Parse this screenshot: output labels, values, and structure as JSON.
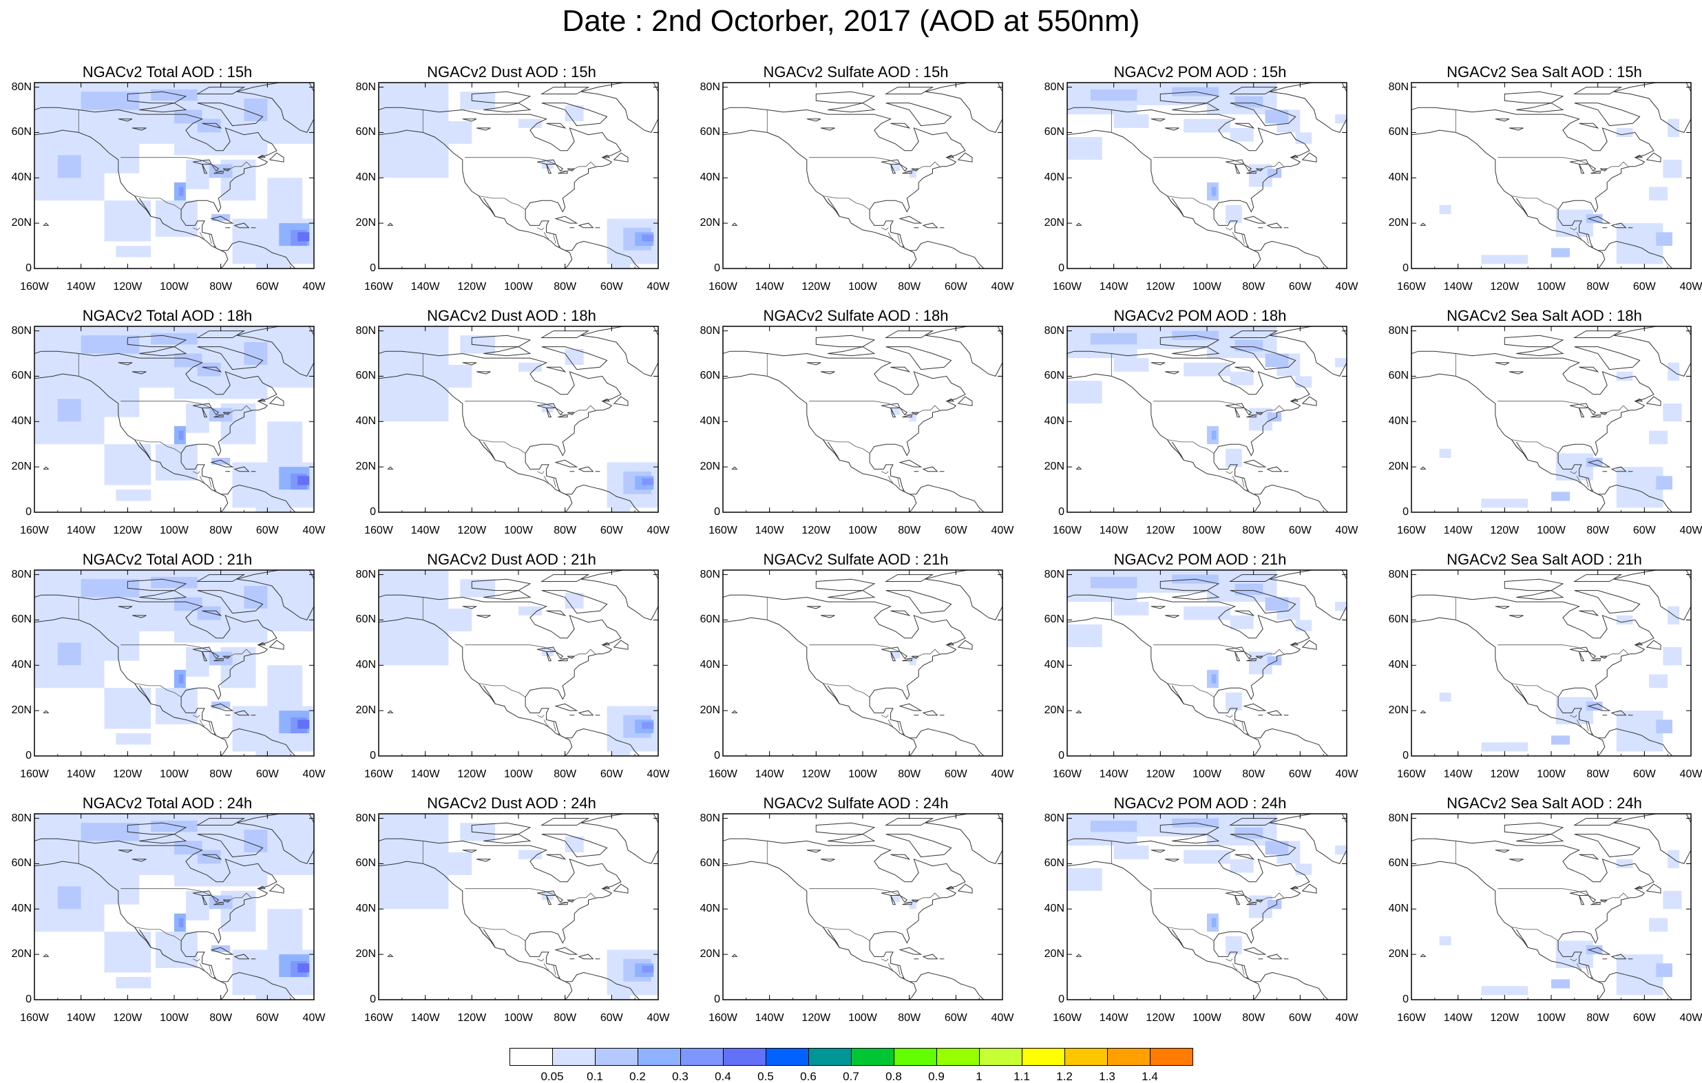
{
  "title": "Date : 2nd Octorber, 2017 (AOD at 550nm)",
  "map": {
    "x_ticks": [
      "160W",
      "140W",
      "120W",
      "100W",
      "80W",
      "60W",
      "40W"
    ],
    "y_ticks": [
      "80N",
      "60N",
      "40N",
      "20N",
      "0"
    ]
  },
  "panels": [
    {
      "title": "NGACv2 Total AOD : 15h",
      "species": "total",
      "hour": "15h"
    },
    {
      "title": "NGACv2 Dust AOD : 15h",
      "species": "dust",
      "hour": "15h"
    },
    {
      "title": "NGACv2 Sulfate AOD : 15h",
      "species": "sulfate",
      "hour": "15h"
    },
    {
      "title": "NGACv2 POM AOD : 15h",
      "species": "pom",
      "hour": "15h"
    },
    {
      "title": "NGACv2 Sea Salt AOD : 15h",
      "species": "seasalt",
      "hour": "15h"
    },
    {
      "title": "NGACv2 Total AOD : 18h",
      "species": "total",
      "hour": "18h"
    },
    {
      "title": "NGACv2 Dust AOD : 18h",
      "species": "dust",
      "hour": "18h"
    },
    {
      "title": "NGACv2 Sulfate AOD : 18h",
      "species": "sulfate",
      "hour": "18h"
    },
    {
      "title": "NGACv2 POM AOD : 18h",
      "species": "pom",
      "hour": "18h"
    },
    {
      "title": "NGACv2 Sea Salt AOD : 18h",
      "species": "seasalt",
      "hour": "18h"
    },
    {
      "title": "NGACv2 Total AOD : 21h",
      "species": "total",
      "hour": "21h"
    },
    {
      "title": "NGACv2 Dust AOD : 21h",
      "species": "dust",
      "hour": "21h"
    },
    {
      "title": "NGACv2 Sulfate AOD : 21h",
      "species": "sulfate",
      "hour": "21h"
    },
    {
      "title": "NGACv2 POM AOD : 21h",
      "species": "pom",
      "hour": "21h"
    },
    {
      "title": "NGACv2 Sea Salt AOD : 21h",
      "species": "seasalt",
      "hour": "21h"
    },
    {
      "title": "NGACv2 Total AOD : 24h",
      "species": "total",
      "hour": "24h"
    },
    {
      "title": "NGACv2 Dust AOD : 24h",
      "species": "dust",
      "hour": "24h"
    },
    {
      "title": "NGACv2 Sulfate AOD : 24h",
      "species": "sulfate",
      "hour": "24h"
    },
    {
      "title": "NGACv2 POM AOD : 24h",
      "species": "pom",
      "hour": "24h"
    },
    {
      "title": "NGACv2 Sea Salt  AOD : 24h",
      "species": "seasalt",
      "hour": "24h"
    }
  ],
  "colorbar": {
    "labels": [
      "0.05",
      "0.1",
      "0.2",
      "0.3",
      "0.4",
      "0.5",
      "0.6",
      "0.7",
      "0.8",
      "0.9",
      "1",
      "1.1",
      "1.2",
      "1.3",
      "1.4"
    ],
    "colors": [
      "#ffffff",
      "#d6e2ff",
      "#b5c9ff",
      "#8eb2ff",
      "#7f96ff",
      "#6370f8",
      "#0063ff",
      "#009696",
      "#00c633",
      "#63ff00",
      "#96ff00",
      "#c6ff33",
      "#ffff00",
      "#ffc600",
      "#ffa000",
      "#ff7c00",
      "#ff1900"
    ]
  }
}
